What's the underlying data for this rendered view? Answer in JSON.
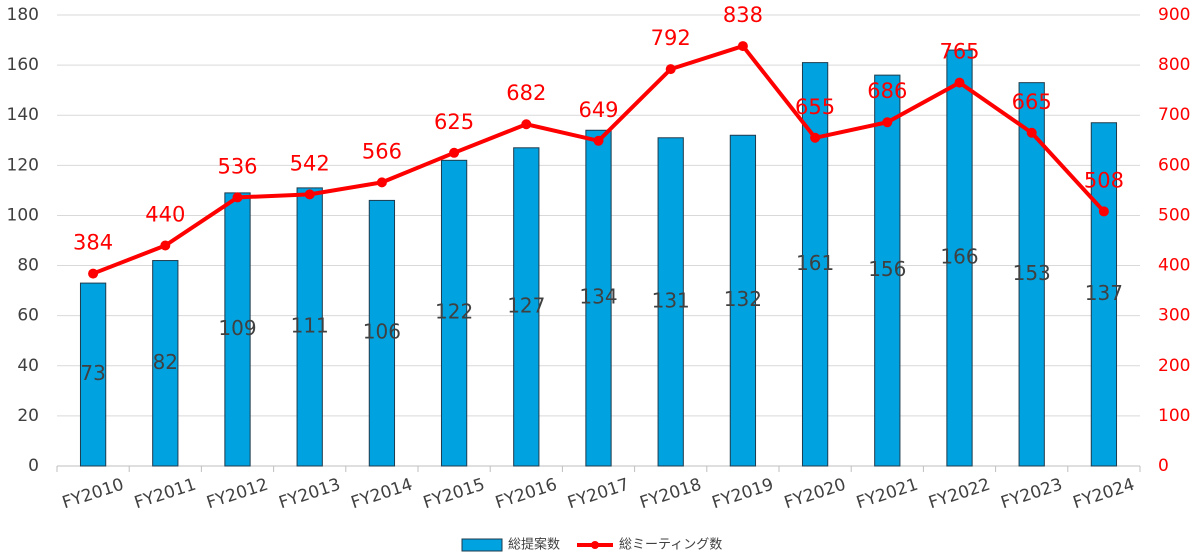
{
  "chart_data": {
    "type": "bar",
    "categories": [
      "FY2010",
      "FY2011",
      "FY2012",
      "FY2013",
      "FY2014",
      "FY2015",
      "FY2016",
      "FY2017",
      "FY2018",
      "FY2019",
      "FY2020",
      "FY2021",
      "FY2022",
      "FY2023",
      "FY2024"
    ],
    "series": [
      {
        "name": "総提案数",
        "type": "bar",
        "color": "#00a2e0",
        "values": [
          73,
          82,
          109,
          111,
          106,
          122,
          127,
          134,
          131,
          132,
          161,
          156,
          166,
          153,
          137
        ]
      },
      {
        "name": "総ミーティング数",
        "type": "line",
        "axis": "y2",
        "color": "#ff0000",
        "values": [
          384,
          440,
          536,
          542,
          566,
          625,
          682,
          649,
          792,
          838,
          655,
          686,
          765,
          665,
          508
        ]
      }
    ],
    "ylim": [
      0,
      180
    ],
    "yticks": [
      0,
      20,
      40,
      60,
      80,
      100,
      120,
      140,
      160,
      180
    ],
    "y2lim": [
      0,
      900
    ],
    "y2ticks": [
      0,
      100,
      200,
      300,
      400,
      500,
      600,
      700,
      800,
      900
    ],
    "grid": true,
    "legend": "bottom"
  }
}
